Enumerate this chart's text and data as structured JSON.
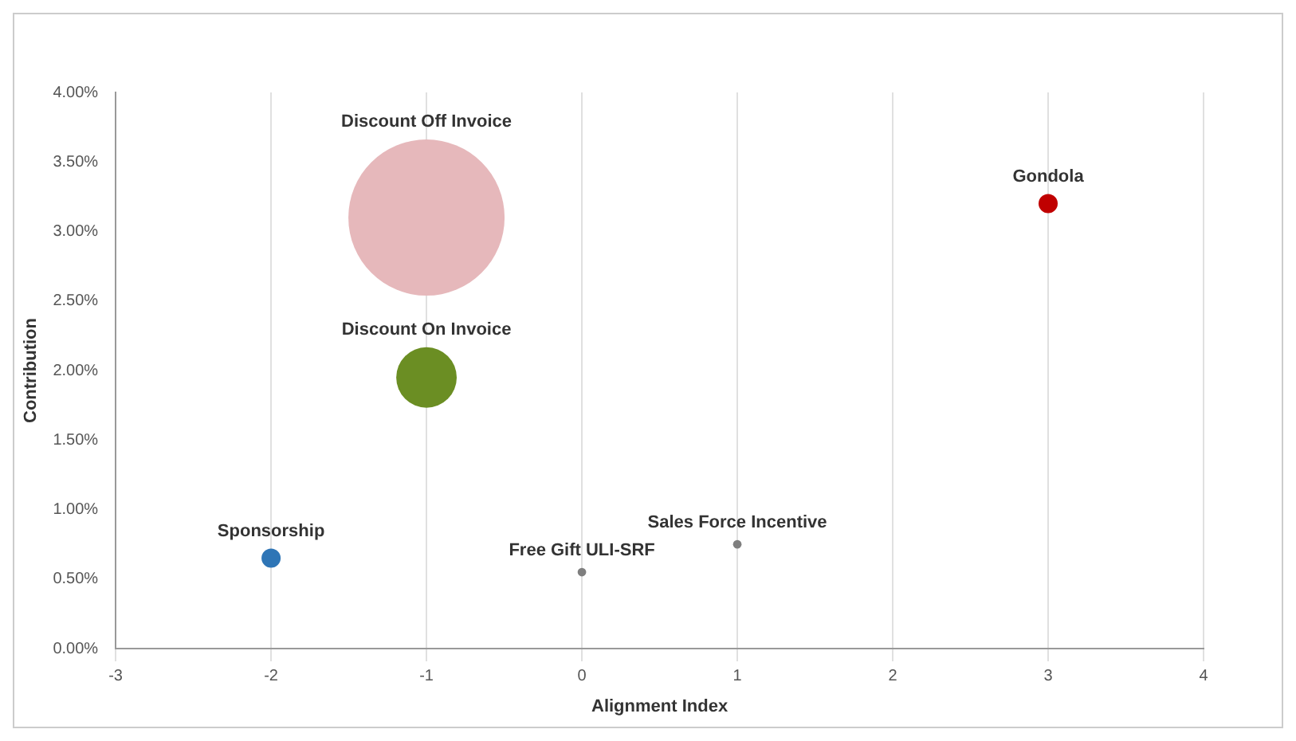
{
  "chart_data": {
    "type": "bubble",
    "xlabel": "Alignment Index",
    "ylabel": "Contribution",
    "xlim": [
      -3,
      4
    ],
    "xticks": [
      -3,
      -2,
      -1,
      0,
      1,
      2,
      3,
      4
    ],
    "ylim": [
      0,
      4
    ],
    "yticks": [
      {
        "value": 0,
        "label": "0.00%"
      },
      {
        "value": 0.5,
        "label": "0.50%"
      },
      {
        "value": 1,
        "label": "1.00%"
      },
      {
        "value": 1.5,
        "label": "1.50%"
      },
      {
        "value": 2,
        "label": "2.00%"
      },
      {
        "value": 2.5,
        "label": "2.50%"
      },
      {
        "value": 3,
        "label": "3.00%"
      },
      {
        "value": 3.5,
        "label": "3.50%"
      },
      {
        "value": 4,
        "label": "4.00%"
      }
    ],
    "grid": "x",
    "legend": false,
    "series": [
      {
        "name": "Discount Off Invoice",
        "color": "#e6b8bb",
        "x": [
          -1
        ],
        "values": [
          3.1
        ],
        "sizes": [
          1
        ]
      },
      {
        "name": "Discount On Invoice",
        "color": "#6b8e23",
        "x": [
          -1
        ],
        "values": [
          1.95
        ],
        "sizes": [
          0.15
        ]
      },
      {
        "name": "Gondola",
        "color": "#c00000",
        "x": [
          3
        ],
        "values": [
          3.2
        ],
        "sizes": [
          0.015
        ]
      },
      {
        "name": "Sponsorship",
        "color": "#2e75b6",
        "x": [
          -2
        ],
        "values": [
          0.65
        ],
        "sizes": [
          0.015
        ]
      },
      {
        "name": "Free Gift ULI-SRF",
        "color": "#7f7f7f",
        "x": [
          0
        ],
        "values": [
          0.55
        ],
        "sizes": [
          0.003
        ]
      },
      {
        "name": "Sales Force Incentive",
        "color": "#7f7f7f",
        "x": [
          1
        ],
        "values": [
          0.75
        ],
        "sizes": [
          0.003
        ]
      }
    ]
  }
}
